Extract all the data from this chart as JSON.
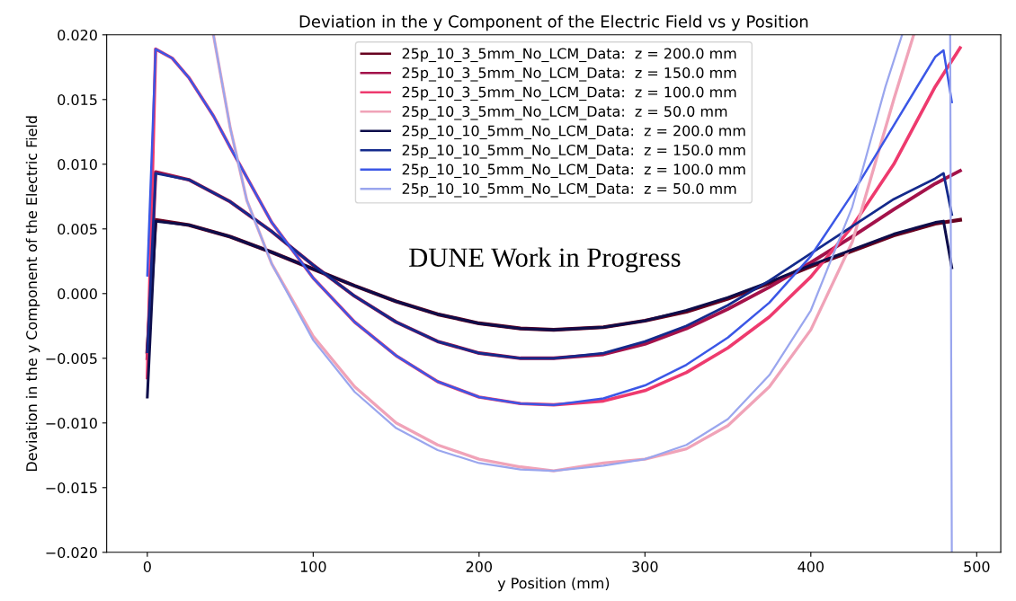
{
  "chart_data": {
    "type": "line",
    "title": "Deviation in the y Component of the Electric Field vs y Position",
    "xlabel": "y Position (mm)",
    "ylabel": "Deviation in the y Component of the Electric Field",
    "xlim": [
      -24.5,
      514.5
    ],
    "xticks": [
      0,
      100,
      200,
      300,
      400,
      500
    ],
    "ylim": [
      -0.02,
      0.02
    ],
    "yticks": [
      {
        "value": -0.02,
        "label": "−0.020"
      },
      {
        "value": -0.015,
        "label": "−0.015"
      },
      {
        "value": -0.01,
        "label": "−0.010"
      },
      {
        "value": -0.005,
        "label": "−0.005"
      },
      {
        "value": 0,
        "label": "0.000"
      },
      {
        "value": 0.005,
        "label": "0.005"
      },
      {
        "value": 0.01,
        "label": "0.010"
      },
      {
        "value": 0.015,
        "label": "0.015"
      },
      {
        "value": 0.02,
        "label": "0.020"
      }
    ],
    "grid": false,
    "legend": "top",
    "marker": "none",
    "line_style": "solid",
    "annotations": [
      "DUNE Work in Progress"
    ],
    "series": [
      {
        "name": "25p_10_3_5mm_No_LCM_Data:  z = 200.0 mm",
        "color": "#67001f",
        "x": [
          0,
          5,
          25,
          50,
          75,
          100,
          125,
          150,
          175,
          200,
          225,
          245,
          275,
          300,
          325,
          350,
          375,
          400,
          425,
          450,
          475,
          490
        ],
        "values": [
          -0.0045,
          0.0057,
          0.0053,
          0.0044,
          0.0032,
          0.0019,
          0.0006,
          -0.0006,
          -0.0016,
          -0.0023,
          -0.0027,
          -0.0028,
          -0.0026,
          -0.0021,
          -0.0014,
          -0.0004,
          0.0008,
          0.0021,
          0.0033,
          0.0045,
          0.0054,
          0.0057
        ]
      },
      {
        "name": "25p_10_3_5mm_No_LCM_Data:  z = 150.0 mm",
        "color": "#a3124a",
        "x": [
          0,
          5,
          25,
          50,
          75,
          100,
          125,
          150,
          175,
          200,
          225,
          245,
          275,
          300,
          325,
          350,
          375,
          400,
          425,
          450,
          475,
          490
        ],
        "values": [
          -0.005,
          0.0094,
          0.0088,
          0.0071,
          0.0048,
          0.0022,
          -0.0002,
          -0.0022,
          -0.0037,
          -0.0046,
          -0.005,
          -0.005,
          -0.0047,
          -0.0039,
          -0.0027,
          -0.0012,
          0.0005,
          0.0024,
          0.0044,
          0.0065,
          0.0085,
          0.0095
        ]
      },
      {
        "name": "25p_10_3_5mm_No_LCM_Data:  z = 100.0 mm",
        "color": "#ee3a6e",
        "x": [
          0,
          5,
          15,
          25,
          40,
          50,
          75,
          100,
          125,
          150,
          175,
          200,
          225,
          245,
          275,
          300,
          325,
          350,
          375,
          400,
          425,
          450,
          475,
          490
        ],
        "values": [
          -0.0065,
          0.0189,
          0.0182,
          0.0167,
          0.0137,
          0.0113,
          0.0055,
          0.0012,
          -0.0022,
          -0.0048,
          -0.0068,
          -0.008,
          -0.0085,
          -0.0086,
          -0.0083,
          -0.0075,
          -0.0061,
          -0.0042,
          -0.0018,
          0.0013,
          0.0052,
          0.01,
          0.016,
          0.019
        ]
      },
      {
        "name": "25p_10_3_5mm_No_LCM_Data:  z = 50.0 mm",
        "color": "#f0a3b8",
        "x": [
          40,
          50,
          60,
          75,
          100,
          125,
          150,
          175,
          200,
          225,
          245,
          275,
          300,
          325,
          350,
          375,
          400,
          425,
          450,
          462
        ],
        "values": [
          0.0199,
          0.0128,
          0.0072,
          0.0023,
          -0.0033,
          -0.0072,
          -0.01,
          -0.0117,
          -0.0128,
          -0.0134,
          -0.0137,
          -0.0131,
          -0.0128,
          -0.012,
          -0.0102,
          -0.0072,
          -0.0028,
          0.004,
          0.015,
          0.02
        ]
      },
      {
        "name": "25p_10_10_5mm_No_LCM_Data:  z = 200.0 mm",
        "color": "#0d0d4a",
        "x": [
          0,
          5,
          25,
          50,
          75,
          100,
          125,
          150,
          175,
          200,
          225,
          245,
          275,
          300,
          325,
          350,
          375,
          400,
          425,
          450,
          475,
          480,
          485
        ],
        "values": [
          -0.008,
          0.0056,
          0.0053,
          0.0044,
          0.0032,
          0.0019,
          0.0006,
          -0.0006,
          -0.0016,
          -0.0023,
          -0.0027,
          -0.0028,
          -0.0026,
          -0.0021,
          -0.0013,
          -0.0003,
          0.0009,
          0.0022,
          0.0034,
          0.0046,
          0.0055,
          0.0056,
          0.002
        ]
      },
      {
        "name": "25p_10_10_5mm_No_LCM_Data:  z = 150.0 mm",
        "color": "#142a8c",
        "x": [
          0,
          5,
          25,
          50,
          75,
          100,
          125,
          150,
          175,
          200,
          225,
          245,
          275,
          300,
          325,
          350,
          375,
          400,
          425,
          450,
          475,
          480,
          485
        ],
        "values": [
          -0.0045,
          0.0093,
          0.0088,
          0.0071,
          0.0048,
          0.0022,
          -0.0002,
          -0.0022,
          -0.0037,
          -0.0046,
          -0.005,
          -0.005,
          -0.0046,
          -0.0037,
          -0.0025,
          -0.0009,
          0.001,
          0.0031,
          0.0052,
          0.0073,
          0.0089,
          0.0093,
          0.0061
        ]
      },
      {
        "name": "25p_10_10_5mm_No_LCM_Data:  z = 100.0 mm",
        "color": "#3b57e6",
        "x": [
          0,
          5,
          15,
          25,
          40,
          50,
          75,
          100,
          125,
          150,
          175,
          200,
          225,
          245,
          275,
          300,
          325,
          350,
          375,
          400,
          425,
          450,
          475,
          480,
          485
        ],
        "values": [
          0.0014,
          0.0189,
          0.0182,
          0.0167,
          0.0137,
          0.0113,
          0.0055,
          0.0012,
          -0.0022,
          -0.0048,
          -0.0068,
          -0.008,
          -0.0085,
          -0.0086,
          -0.0081,
          -0.0071,
          -0.0055,
          -0.0034,
          -0.0007,
          0.0029,
          0.0077,
          0.013,
          0.0183,
          0.0188,
          0.0148
        ]
      },
      {
        "name": "25p_10_10_5mm_No_LCM_Data:  z = 50.0 mm",
        "color": "#9aa6ee",
        "x": [
          40,
          50,
          60,
          75,
          100,
          125,
          150,
          175,
          200,
          225,
          245,
          275,
          300,
          325,
          350,
          375,
          400,
          425,
          445,
          455,
          470,
          484,
          485
        ],
        "values": [
          0.0199,
          0.0128,
          0.0072,
          0.0023,
          -0.0036,
          -0.0076,
          -0.0104,
          -0.0121,
          -0.0131,
          -0.0136,
          -0.0137,
          -0.0133,
          -0.0128,
          -0.0117,
          -0.0097,
          -0.0063,
          -0.0013,
          0.0067,
          0.016,
          0.02,
          null,
          0.02,
          -0.02
        ]
      }
    ]
  }
}
